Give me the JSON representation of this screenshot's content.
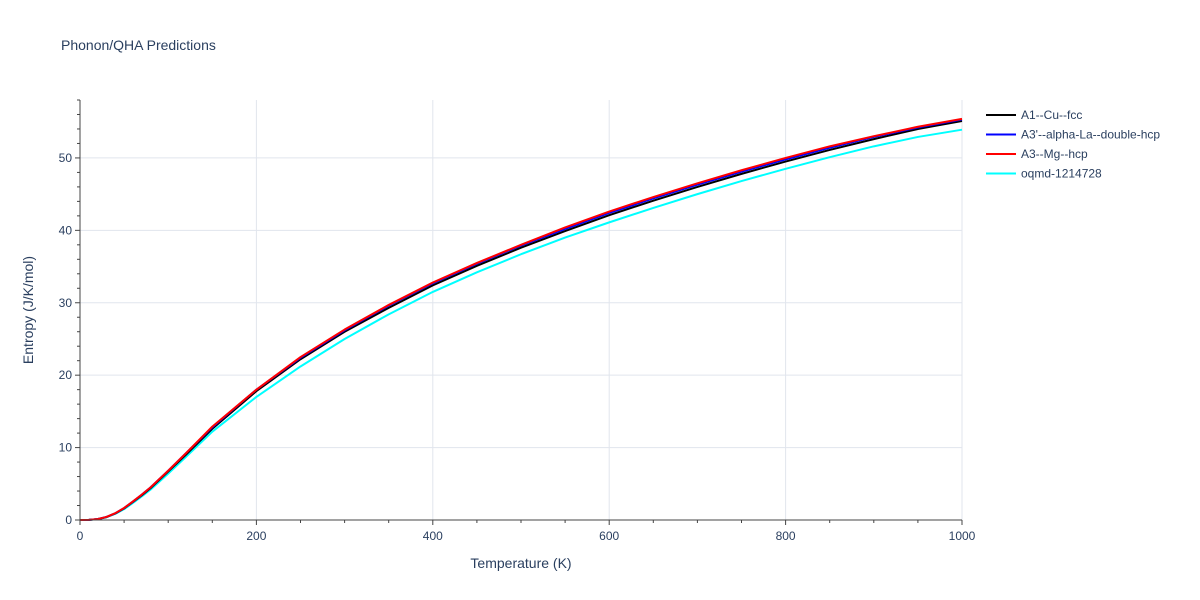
{
  "chart_data": {
    "type": "line",
    "title": "Phonon/QHA Predictions",
    "xlabel": "Temperature (K)",
    "ylabel": "Entropy (J/K/mol)",
    "xlim": [
      0,
      1000
    ],
    "ylim": [
      0,
      58
    ],
    "xticks": [
      0,
      200,
      400,
      600,
      800,
      1000
    ],
    "yticks": [
      0,
      10,
      20,
      30,
      40,
      50
    ],
    "grid": true,
    "legend_position": "top-right",
    "x": [
      0,
      10,
      20,
      30,
      40,
      50,
      60,
      70,
      80,
      100,
      120,
      150,
      200,
      250,
      300,
      350,
      400,
      450,
      500,
      550,
      600,
      650,
      700,
      750,
      800,
      850,
      900,
      950,
      1000
    ],
    "series": [
      {
        "name": "A1--Cu--fcc",
        "color": "#000000",
        "values": [
          0,
          0.02,
          0.12,
          0.4,
          0.9,
          1.6,
          2.5,
          3.4,
          4.4,
          6.7,
          9.0,
          12.6,
          17.8,
          22.2,
          26.0,
          29.3,
          32.4,
          35.1,
          37.6,
          39.9,
          42.1,
          44.1,
          46.0,
          47.8,
          49.5,
          51.1,
          52.6,
          54.0,
          55.1
        ]
      },
      {
        "name": "A3'--alpha-La--double-hcp",
        "color": "#0000ff",
        "values": [
          0,
          0.02,
          0.13,
          0.42,
          0.93,
          1.65,
          2.55,
          3.5,
          4.5,
          6.8,
          9.2,
          12.8,
          18.0,
          22.4,
          26.2,
          29.6,
          32.7,
          35.4,
          37.9,
          40.2,
          42.4,
          44.4,
          46.3,
          48.1,
          49.8,
          51.4,
          52.9,
          54.2,
          55.3
        ]
      },
      {
        "name": "A3--Mg--hcp",
        "color": "#ff0000",
        "values": [
          0,
          0.02,
          0.13,
          0.42,
          0.94,
          1.66,
          2.56,
          3.5,
          4.5,
          6.8,
          9.2,
          12.9,
          18.0,
          22.5,
          26.3,
          29.7,
          32.8,
          35.5,
          38.0,
          40.4,
          42.6,
          44.6,
          46.5,
          48.3,
          50.0,
          51.6,
          53.0,
          54.3,
          55.4
        ]
      },
      {
        "name": "oqmd-1214728",
        "color": "#00ffff",
        "values": [
          0,
          0.02,
          0.12,
          0.38,
          0.85,
          1.5,
          2.35,
          3.25,
          4.2,
          6.4,
          8.7,
          12.2,
          17.0,
          21.2,
          25.0,
          28.4,
          31.5,
          34.2,
          36.7,
          39.0,
          41.1,
          43.1,
          45.0,
          46.8,
          48.5,
          50.1,
          51.6,
          52.9,
          53.9
        ]
      }
    ]
  }
}
